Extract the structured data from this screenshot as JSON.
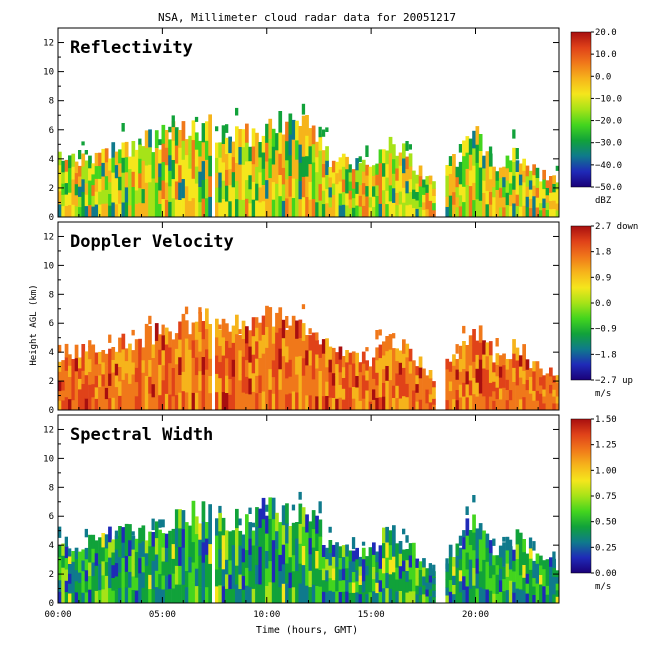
{
  "title": "NSA, Millimeter cloud radar data for 20051217",
  "xlabel": "Time (hours, GMT)",
  "ylabel": "Height AGL (km)",
  "x_ticks": [
    "00:00",
    "05:00",
    "10:00",
    "15:00",
    "20:00"
  ],
  "y_ticks": [
    "0",
    "2",
    "4",
    "6",
    "8",
    "10",
    "12"
  ],
  "chart_data": [
    {
      "type": "heatmap",
      "title": "Reflectivity",
      "colorbar_unit": "dBZ",
      "colorbar_ticks": [
        "20.0",
        "10.0",
        "0.0",
        "−10.0",
        "−20.0",
        "−30.0",
        "−40.0",
        "−50.0"
      ],
      "clim": [
        -50,
        20
      ],
      "xlim_hours": [
        0,
        24
      ],
      "ylim_km": [
        0,
        13
      ],
      "cloud_top_km": [
        {
          "hour": 0.0,
          "top": 4.4
        },
        {
          "hour": 1.0,
          "top": 4.6
        },
        {
          "hour": 2.0,
          "top": 5.0
        },
        {
          "hour": 3.0,
          "top": 5.2
        },
        {
          "hour": 4.0,
          "top": 5.6
        },
        {
          "hour": 5.0,
          "top": 6.1
        },
        {
          "hour": 6.0,
          "top": 6.6
        },
        {
          "hour": 7.0,
          "top": 7.0
        },
        {
          "hour": 8.0,
          "top": 6.5
        },
        {
          "hour": 9.0,
          "top": 6.1
        },
        {
          "hour": 10.0,
          "top": 7.2
        },
        {
          "hour": 11.0,
          "top": 7.0
        },
        {
          "hour": 12.0,
          "top": 6.8
        },
        {
          "hour": 13.0,
          "top": 4.5
        },
        {
          "hour": 14.0,
          "top": 4.0
        },
        {
          "hour": 15.0,
          "top": 3.8
        },
        {
          "hour": 16.0,
          "top": 5.8
        },
        {
          "hour": 17.0,
          "top": 4.2
        },
        {
          "hour": 18.0,
          "top": 2.5
        },
        {
          "hour": 19.0,
          "top": 4.2
        },
        {
          "hour": 20.0,
          "top": 6.5
        },
        {
          "hour": 21.0,
          "top": 4.0
        },
        {
          "hour": 22.0,
          "top": 5.0
        },
        {
          "hour": 23.0,
          "top": 3.2
        },
        {
          "hour": 24.0,
          "top": 3.0
        }
      ]
    },
    {
      "type": "heatmap",
      "title": "Doppler Velocity",
      "colorbar_unit": "m/s",
      "colorbar_ticks": [
        "2.7 down",
        "1.8",
        "0.9",
        "0.0",
        "−0.9",
        "−1.8",
        "−2.7 up"
      ],
      "clim": [
        -2.7,
        2.7
      ]
    },
    {
      "type": "heatmap",
      "title": "Spectral Width",
      "colorbar_unit": "m/s",
      "colorbar_ticks": [
        "1.50",
        "1.25",
        "1.00",
        "0.75",
        "0.50",
        "0.25",
        "0.00"
      ],
      "clim": [
        0,
        1.5
      ]
    }
  ],
  "colors": {
    "rainbow": [
      "#1a0078",
      "#1f2ab8",
      "#0f7a8c",
      "#11a23a",
      "#43d51e",
      "#a6e318",
      "#f5e61c",
      "#f6b41b",
      "#f0781a",
      "#e04219",
      "#a80f0f"
    ]
  }
}
